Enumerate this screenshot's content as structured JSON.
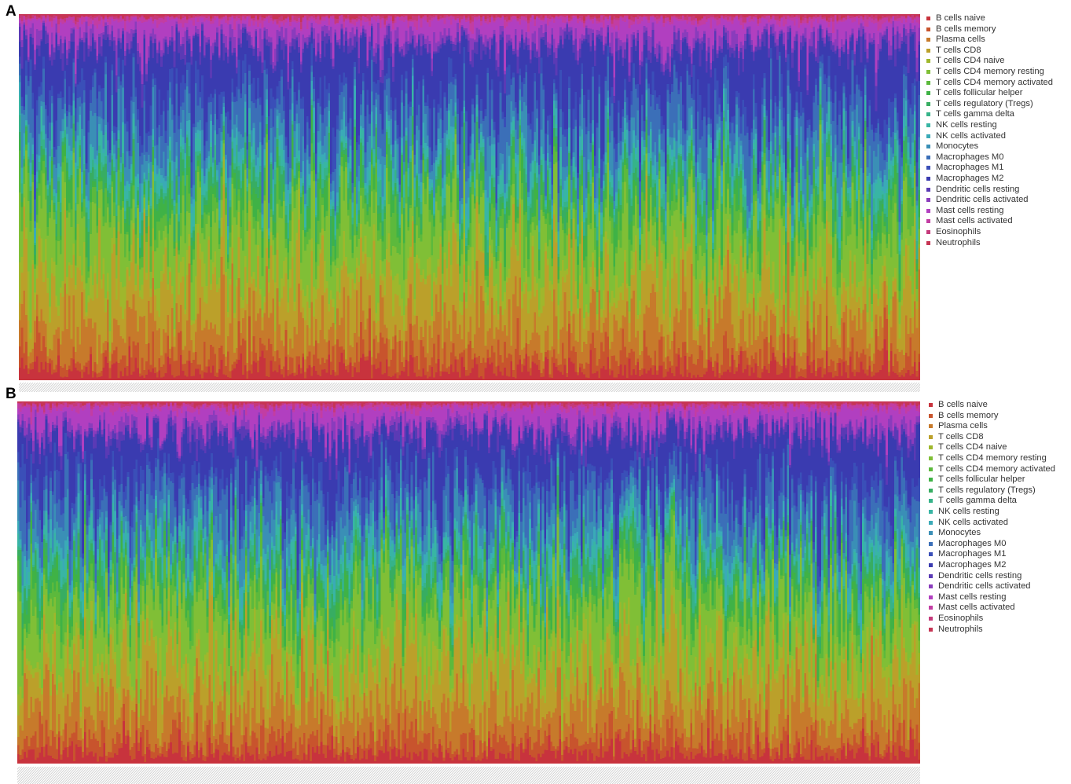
{
  "chart_data": [
    {
      "type": "bar",
      "stacked": true,
      "panel": "A",
      "sample_count": 420,
      "ylim": [
        0,
        1
      ],
      "grid": false,
      "legend_position": "right",
      "series": [
        {
          "name": "B cells naive",
          "color": "#c8333d",
          "mean_fraction": 0.03
        },
        {
          "name": "B cells memory",
          "color": "#c8542d",
          "mean_fraction": 0.04
        },
        {
          "name": "Plasma cells",
          "color": "#c77a2b",
          "mean_fraction": 0.09
        },
        {
          "name": "T cells CD8",
          "color": "#bba02a",
          "mean_fraction": 0.11
        },
        {
          "name": "T cells CD4 naive",
          "color": "#9fb72c",
          "mean_fraction": 0.04
        },
        {
          "name": "T cells CD4 memory resting",
          "color": "#80bf36",
          "mean_fraction": 0.12
        },
        {
          "name": "T cells CD4 memory activated",
          "color": "#5cb93c",
          "mean_fraction": 0.04
        },
        {
          "name": "T cells follicular helper",
          "color": "#3fb246",
          "mean_fraction": 0.04
        },
        {
          "name": "T cells regulatory (Tregs)",
          "color": "#37ad62",
          "mean_fraction": 0.03
        },
        {
          "name": "T cells gamma delta",
          "color": "#36b389",
          "mean_fraction": 0.02
        },
        {
          "name": "NK cells resting",
          "color": "#38b5a4",
          "mean_fraction": 0.03
        },
        {
          "name": "NK cells activated",
          "color": "#3aaab7",
          "mean_fraction": 0.02
        },
        {
          "name": "Monocytes",
          "color": "#3a8fb6",
          "mean_fraction": 0.05
        },
        {
          "name": "Macrophages M0",
          "color": "#3b6fb8",
          "mean_fraction": 0.07
        },
        {
          "name": "Macrophages M1",
          "color": "#3a4fb8",
          "mean_fraction": 0.04
        },
        {
          "name": "Macrophages M2",
          "color": "#3a3bb0",
          "mean_fraction": 0.13
        },
        {
          "name": "Dendritic cells resting",
          "color": "#5a3ab5",
          "mean_fraction": 0.02
        },
        {
          "name": "Dendritic cells activated",
          "color": "#8a3cbc",
          "mean_fraction": 0.02
        },
        {
          "name": "Mast cells resting",
          "color": "#b13fc0",
          "mean_fraction": 0.04
        },
        {
          "name": "Mast cells activated",
          "color": "#c23da3",
          "mean_fraction": 0.01
        },
        {
          "name": "Eosinophils",
          "color": "#c53a7b",
          "mean_fraction": 0.005
        },
        {
          "name": "Neutrophils",
          "color": "#c63554",
          "mean_fraction": 0.005
        }
      ]
    },
    {
      "type": "bar",
      "stacked": true,
      "panel": "B",
      "sample_count": 420,
      "ylim": [
        0,
        1
      ],
      "grid": false,
      "legend_position": "right",
      "series": [
        {
          "name": "B cells naive",
          "color": "#c8333d",
          "mean_fraction": 0.03
        },
        {
          "name": "B cells memory",
          "color": "#c8542d",
          "mean_fraction": 0.04
        },
        {
          "name": "Plasma cells",
          "color": "#c77a2b",
          "mean_fraction": 0.09
        },
        {
          "name": "T cells CD8",
          "color": "#bba02a",
          "mean_fraction": 0.11
        },
        {
          "name": "T cells CD4 naive",
          "color": "#9fb72c",
          "mean_fraction": 0.04
        },
        {
          "name": "T cells CD4 memory resting",
          "color": "#80bf36",
          "mean_fraction": 0.12
        },
        {
          "name": "T cells CD4 memory activated",
          "color": "#5cb93c",
          "mean_fraction": 0.04
        },
        {
          "name": "T cells follicular helper",
          "color": "#3fb246",
          "mean_fraction": 0.04
        },
        {
          "name": "T cells regulatory (Tregs)",
          "color": "#37ad62",
          "mean_fraction": 0.03
        },
        {
          "name": "T cells gamma delta",
          "color": "#36b389",
          "mean_fraction": 0.02
        },
        {
          "name": "NK cells resting",
          "color": "#38b5a4",
          "mean_fraction": 0.03
        },
        {
          "name": "NK cells activated",
          "color": "#3aaab7",
          "mean_fraction": 0.02
        },
        {
          "name": "Monocytes",
          "color": "#3a8fb6",
          "mean_fraction": 0.05
        },
        {
          "name": "Macrophages M0",
          "color": "#3b6fb8",
          "mean_fraction": 0.07
        },
        {
          "name": "Macrophages M1",
          "color": "#3a4fb8",
          "mean_fraction": 0.04
        },
        {
          "name": "Macrophages M2",
          "color": "#3a3bb0",
          "mean_fraction": 0.13
        },
        {
          "name": "Dendritic cells resting",
          "color": "#5a3ab5",
          "mean_fraction": 0.02
        },
        {
          "name": "Dendritic cells activated",
          "color": "#8a3cbc",
          "mean_fraction": 0.02
        },
        {
          "name": "Mast cells resting",
          "color": "#b13fc0",
          "mean_fraction": 0.04
        },
        {
          "name": "Mast cells activated",
          "color": "#c23da3",
          "mean_fraction": 0.01
        },
        {
          "name": "Eosinophils",
          "color": "#c53a7b",
          "mean_fraction": 0.005
        },
        {
          "name": "Neutrophils",
          "color": "#c63554",
          "mean_fraction": 0.005
        }
      ]
    }
  ],
  "panels": [
    {
      "letter": "A"
    },
    {
      "letter": "B"
    }
  ]
}
